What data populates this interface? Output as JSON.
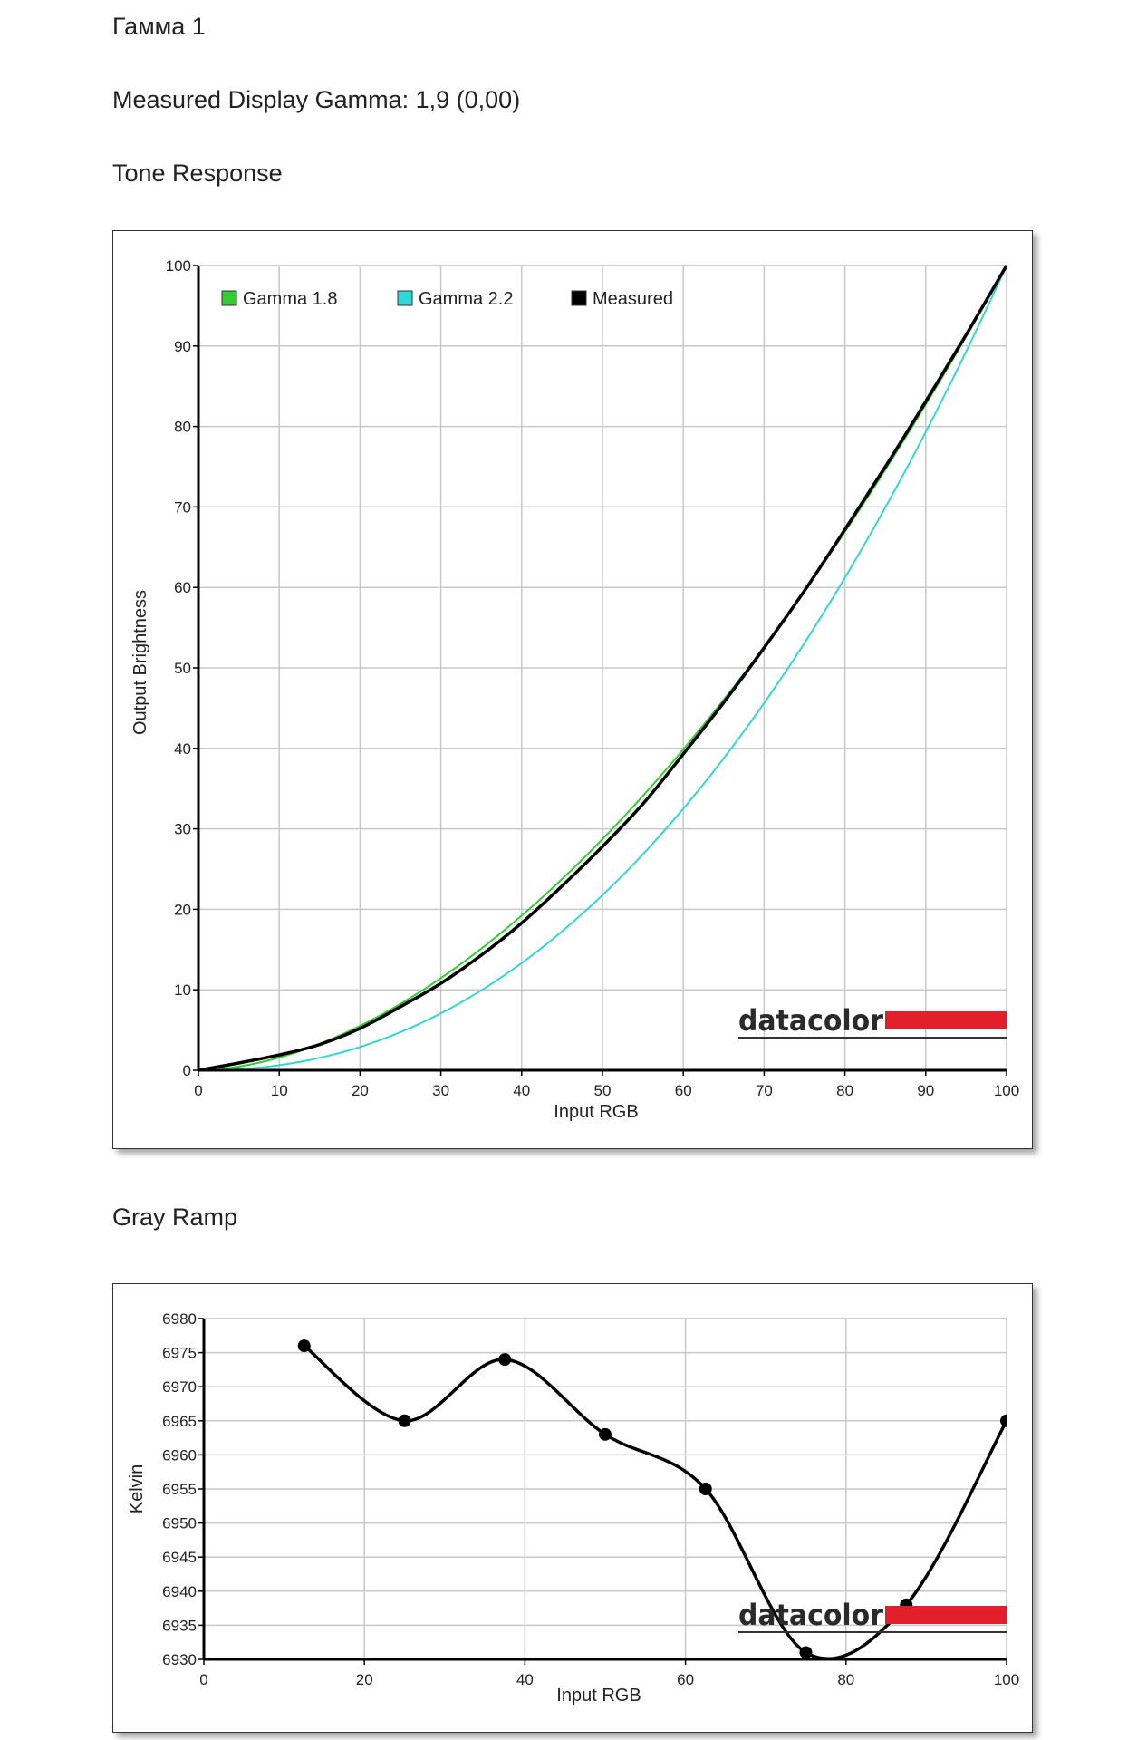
{
  "page": {
    "title": "Гамма 1",
    "gamma_line": "Measured Display Gamma: 1,9 (0,00)",
    "tone_heading": "Tone Response",
    "gray_heading": "Gray Ramp"
  },
  "brand": {
    "logo_text": "datacolor",
    "logo_color": "#e21f2b"
  },
  "chart_data": [
    {
      "type": "line",
      "title": "Tone Response",
      "xlabel": "Input RGB",
      "ylabel": "Output Brightness",
      "xlim": [
        0,
        100
      ],
      "ylim": [
        0,
        100
      ],
      "x_ticks": [
        0,
        10,
        20,
        30,
        40,
        50,
        60,
        70,
        80,
        90,
        100
      ],
      "y_ticks": [
        0,
        10,
        20,
        30,
        40,
        50,
        60,
        70,
        80,
        90,
        100
      ],
      "grid": true,
      "legend": "top-left",
      "series": [
        {
          "name": "Gamma 1.8",
          "color": "#33cc33",
          "gamma": 1.8
        },
        {
          "name": "Gamma 2.2",
          "color": "#33d6d6",
          "gamma": 2.2
        },
        {
          "name": "Measured",
          "color": "#000000",
          "x": [
            0,
            5,
            10,
            15,
            20,
            25,
            30,
            35,
            40,
            45,
            50,
            55,
            60,
            65,
            70,
            75,
            80,
            85,
            90,
            95,
            100
          ],
          "y": [
            0,
            0.9,
            1.9,
            3.2,
            5.2,
            7.9,
            10.8,
            14.3,
            18.3,
            22.9,
            27.8,
            33.1,
            39.3,
            45.7,
            52.5,
            59.6,
            67.2,
            75.0,
            83.1,
            91.4,
            100
          ]
        }
      ]
    },
    {
      "type": "line",
      "title": "Gray Ramp",
      "xlabel": "Input RGB",
      "ylabel": "Kelvin",
      "xlim": [
        0,
        100
      ],
      "ylim": [
        6930,
        6980
      ],
      "x_ticks": [
        0,
        20,
        40,
        60,
        80,
        100
      ],
      "y_ticks": [
        6930,
        6935,
        6940,
        6945,
        6950,
        6955,
        6960,
        6965,
        6970,
        6975,
        6980
      ],
      "grid": true,
      "series": [
        {
          "name": "Kelvin",
          "color": "#000000",
          "x": [
            12.5,
            25,
            37.5,
            50,
            62.5,
            75,
            87.5,
            100
          ],
          "y": [
            6976,
            6965,
            6974,
            6963,
            6955,
            6931,
            6938,
            6965
          ]
        }
      ]
    }
  ]
}
